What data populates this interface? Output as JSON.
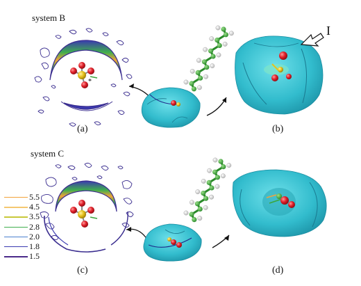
{
  "labels": {
    "system_b": "system B",
    "system_c": "system C",
    "panel_a": "(a)",
    "panel_b": "(b)",
    "panel_c": "(c)",
    "panel_d": "(d)",
    "marker_i": "I"
  },
  "legend": [
    {
      "value": "5.5",
      "color": "#f2a23a"
    },
    {
      "value": "4.5",
      "color": "#f4c770"
    },
    {
      "value": "3.5",
      "color": "#c8c83a"
    },
    {
      "value": "2.8",
      "color": "#3fae4e"
    },
    {
      "value": "2.0",
      "color": "#4a7fcf"
    },
    {
      "value": "1.8",
      "color": "#3a3ab0"
    },
    {
      "value": "1.5",
      "color": "#4a2a8a"
    }
  ],
  "colors": {
    "surface": "#3cc2d2",
    "surface_dark": "#1f96ab",
    "oxygen": "#e0202a",
    "sulfur": "#e6c21e",
    "carbon_chain": "#3aa63a",
    "hydrogen": "#f2f2f2",
    "contour_outer": "#3a2d8f"
  }
}
